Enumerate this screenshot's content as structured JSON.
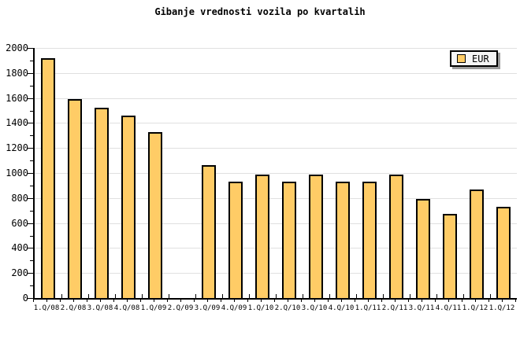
{
  "chart_data": {
    "type": "bar",
    "title": "Gibanje vrednosti vozila po kvartalih",
    "categories": [
      "1.Q/08",
      "2.Q/08",
      "3.Q/08",
      "4.Q/08",
      "1.Q/09",
      "2.Q/09",
      "3.Q/09",
      "4.Q/09",
      "1.Q/10",
      "2.Q/10",
      "3.Q/10",
      "4.Q/10",
      "1.Q/11",
      "2.Q/11",
      "3.Q/11",
      "4.Q/11",
      "1.Q/12",
      "1.Q/12"
    ],
    "series": [
      {
        "name": "EUR",
        "values": [
          1920,
          1590,
          1520,
          1460,
          1325,
          null,
          1060,
          930,
          990,
          930,
          990,
          930,
          930,
          990,
          795,
          670,
          865,
          730
        ]
      }
    ],
    "xlabel": "",
    "ylabel": "",
    "ylim": [
      0,
      2000
    ],
    "ytick_step": 200,
    "ytick_minor_step": 100,
    "yticks": [
      0,
      200,
      400,
      600,
      800,
      1000,
      1200,
      1400,
      1600,
      1800,
      2000
    ],
    "grid": "horizontal-major",
    "legend": {
      "position": "top-right",
      "entries": [
        "EUR"
      ]
    },
    "colors": {
      "bar_fill": "#FFCC66",
      "bar_border": "#000000",
      "grid": "#E0E0E0",
      "axis": "#000000",
      "background": "#FFFFFF",
      "legend_bg": "#F6F6F6",
      "legend_shadow": "#9C9C9C",
      "text": "#000000"
    }
  }
}
